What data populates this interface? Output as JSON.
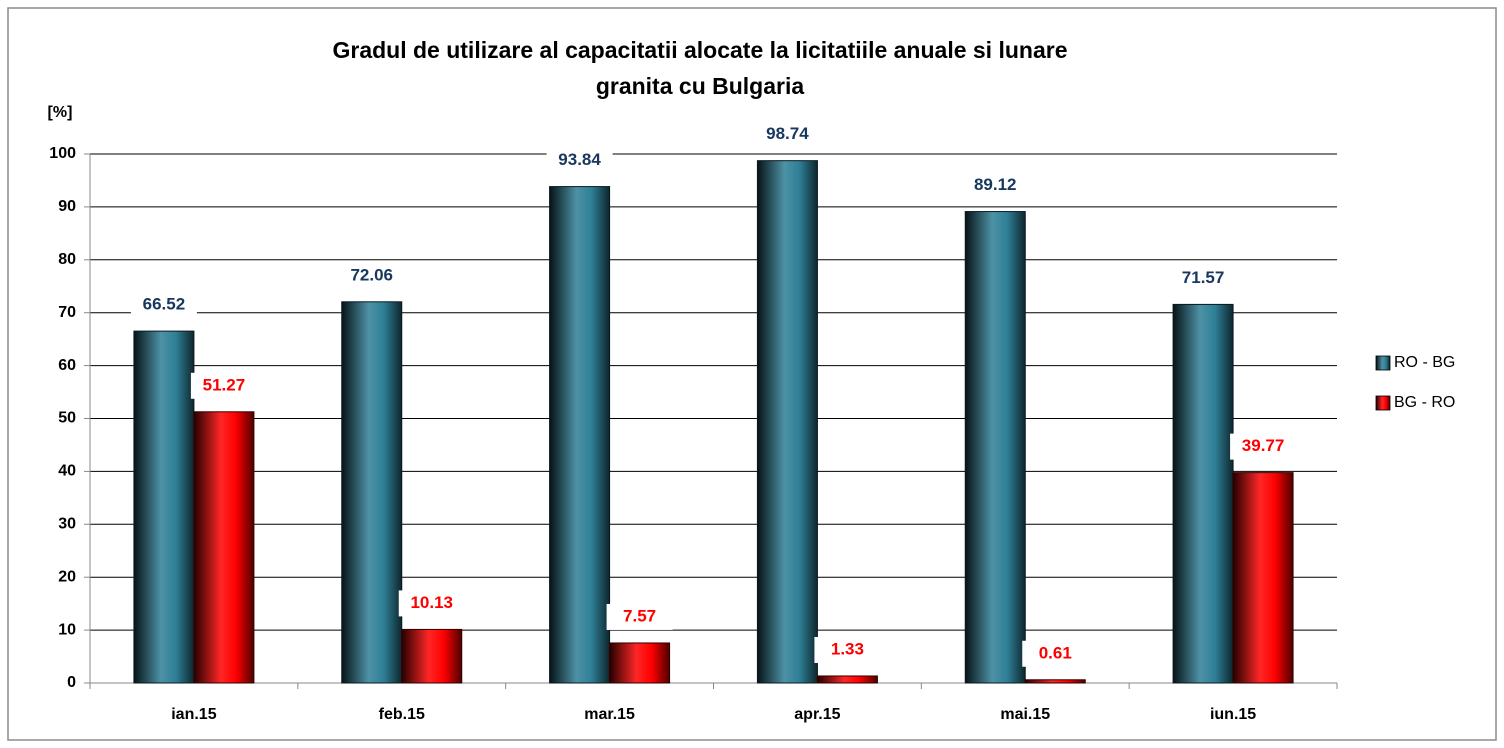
{
  "chart_data": {
    "type": "bar",
    "title": [
      "Gradul de utilizare al capacitatii alocate la licitatiile anuale si lunare",
      "granita cu Bulgaria"
    ],
    "y_label": "[%]",
    "categories": [
      "ian.15",
      "feb.15",
      "mar.15",
      "apr.15",
      "mai.15",
      "iun.15"
    ],
    "series": [
      {
        "name": "RO - BG",
        "color": "#2e7f96",
        "label_color": "#17375e",
        "values": [
          66.52,
          72.06,
          93.84,
          98.74,
          89.12,
          71.57
        ]
      },
      {
        "name": "BG - RO",
        "color": "#ff0000",
        "label_color": "#ff0000",
        "values": [
          51.27,
          10.13,
          7.57,
          1.33,
          0.61,
          39.77
        ]
      }
    ],
    "ylim": [
      0,
      100
    ],
    "yticks": [
      0,
      10,
      20,
      30,
      40,
      50,
      60,
      70,
      80,
      90,
      100
    ],
    "grid": true,
    "legend": "right"
  }
}
